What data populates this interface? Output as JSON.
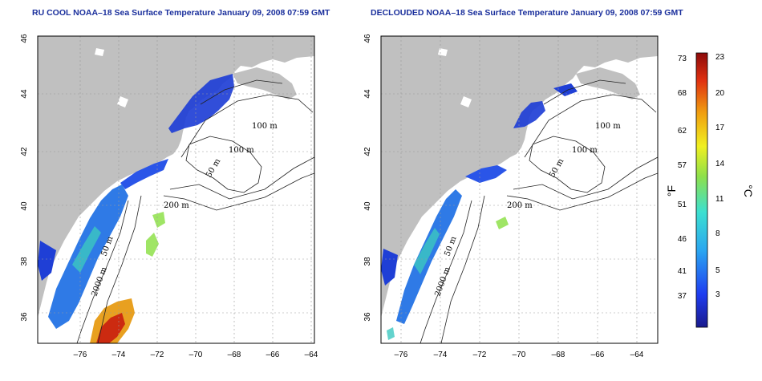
{
  "left_map": {
    "title": "RU COOL NOAA–18 Sea Surface Temperature January 09, 2008 07:59 GMT",
    "lat_ticks": [
      "36",
      "38",
      "40",
      "42",
      "44",
      "46"
    ],
    "lon_ticks": [
      "–76",
      "–74",
      "–72",
      "–70",
      "–68",
      "–66",
      "–64"
    ],
    "contour_labels": [
      "100 m",
      "100 m",
      "50 m",
      "200 m",
      "2000 m",
      "50 m"
    ]
  },
  "right_map": {
    "title": "DECLOUDED NOAA–18 Sea Surface Temperature January 09, 2008 07:59 GMT",
    "lat_ticks": [
      "36",
      "38",
      "40",
      "42",
      "44",
      "46"
    ],
    "lon_ticks": [
      "–76",
      "–74",
      "–72",
      "–70",
      "–68",
      "–66",
      "–64"
    ],
    "contour_labels": [
      "100 m",
      "100 m",
      "50 m",
      "200 m",
      "2000 m",
      "50 m"
    ]
  },
  "colorbar": {
    "fahrenheit_ticks": [
      "73",
      "68",
      "62",
      "57",
      "51",
      "46",
      "41",
      "37"
    ],
    "celsius_ticks": [
      "23",
      "20",
      "17",
      "14",
      "11",
      "8",
      "5",
      "3"
    ],
    "fahrenheit_unit": "°F",
    "celsius_unit": "°C"
  },
  "colors": {
    "land": "#c0c0c0",
    "title": "#1a2f9c",
    "cold": "#1f3fd6",
    "warm": "#cc2a10"
  }
}
